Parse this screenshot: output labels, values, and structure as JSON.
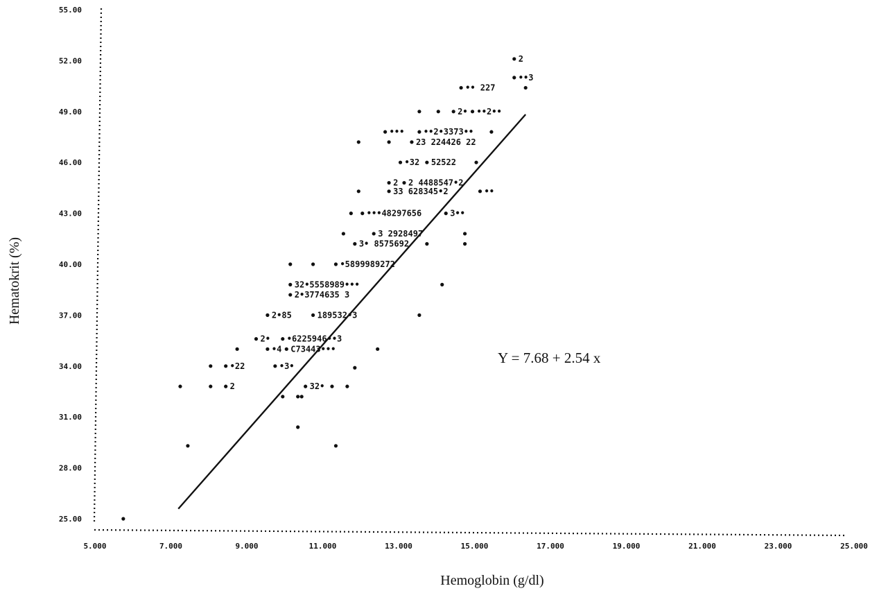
{
  "chart_data": {
    "type": "scatter",
    "xlabel": "Hemoglobin (g/dl)",
    "ylabel": "Hematokrit  (%)",
    "xlim": [
      5.0,
      25.0
    ],
    "ylim": [
      25.0,
      55.0
    ],
    "x_ticks": [
      "5.000",
      "7.000",
      "9.000",
      "11.000",
      "13.000",
      "15.000",
      "17.000",
      "19.000",
      "21.000",
      "23.000",
      "25.000"
    ],
    "y_ticks": [
      "25.00",
      "28.00",
      "31.00",
      "34.00",
      "37.00",
      "40.00",
      "43.00",
      "46.00",
      "49.00",
      "52.00",
      "55.00"
    ],
    "regression": {
      "label": "Y = 7.68 + 2.54 x",
      "intercept": 7.68,
      "slope": 2.54,
      "x_range": [
        7.05,
        16.2
      ]
    },
    "points": [
      {
        "x": 5.6,
        "y": 25.0
      },
      {
        "x": 7.3,
        "y": 29.3
      },
      {
        "x": 10.2,
        "y": 30.4
      },
      {
        "x": 11.2,
        "y": 29.3
      },
      {
        "x": 7.1,
        "y": 32.8
      },
      {
        "x": 7.9,
        "y": 32.8
      },
      {
        "x": 8.3,
        "y": 32.8,
        "label": "2"
      },
      {
        "x": 9.8,
        "y": 32.2
      },
      {
        "x": 10.2,
        "y": 32.2
      },
      {
        "x": 10.3,
        "y": 32.2
      },
      {
        "x": 10.4,
        "y": 32.8,
        "label": "32•"
      },
      {
        "x": 11.1,
        "y": 32.8
      },
      {
        "x": 11.5,
        "y": 32.8
      },
      {
        "x": 7.9,
        "y": 34.0
      },
      {
        "x": 8.3,
        "y": 34.0,
        "label": "•22"
      },
      {
        "x": 9.6,
        "y": 34.0,
        "label": "•3•"
      },
      {
        "x": 11.7,
        "y": 33.9
      },
      {
        "x": 8.6,
        "y": 35.0
      },
      {
        "x": 9.4,
        "y": 35.0,
        "label": "•4"
      },
      {
        "x": 9.9,
        "y": 35.0,
        "label": "C73443•••"
      },
      {
        "x": 12.3,
        "y": 35.0
      },
      {
        "x": 9.1,
        "y": 35.6,
        "label": "2•"
      },
      {
        "x": 9.8,
        "y": 35.6,
        "label": "•6225946••3"
      },
      {
        "x": 9.4,
        "y": 37.0,
        "label": "2•85"
      },
      {
        "x": 10.6,
        "y": 37.0,
        "label": "189532•3"
      },
      {
        "x": 13.4,
        "y": 37.0
      },
      {
        "x": 10.0,
        "y": 38.2,
        "label": "2•3774635 3"
      },
      {
        "x": 10.0,
        "y": 38.8,
        "label": "32•5558989•••"
      },
      {
        "x": 14.0,
        "y": 38.8
      },
      {
        "x": 10.0,
        "y": 40.0
      },
      {
        "x": 10.6,
        "y": 40.0
      },
      {
        "x": 11.2,
        "y": 40.0,
        "label": "•5899989272"
      },
      {
        "x": 11.7,
        "y": 41.2,
        "label": "3• 8575692"
      },
      {
        "x": 13.6,
        "y": 41.2
      },
      {
        "x": 14.6,
        "y": 41.2
      },
      {
        "x": 11.4,
        "y": 41.8
      },
      {
        "x": 12.2,
        "y": 41.8,
        "label": "3 2928497"
      },
      {
        "x": 14.6,
        "y": 41.8
      },
      {
        "x": 11.6,
        "y": 43.0
      },
      {
        "x": 11.9,
        "y": 43.0,
        "label": "•••48297656"
      },
      {
        "x": 14.1,
        "y": 43.0,
        "label": "3••"
      },
      {
        "x": 11.8,
        "y": 44.3
      },
      {
        "x": 12.6,
        "y": 44.3,
        "label": "33 628345•2"
      },
      {
        "x": 15.0,
        "y": 44.3,
        "label": "••"
      },
      {
        "x": 12.6,
        "y": 44.8,
        "label": "2"
      },
      {
        "x": 13.0,
        "y": 44.8,
        "label": "2 4488547•2"
      },
      {
        "x": 12.9,
        "y": 46.0,
        "label": "•32"
      },
      {
        "x": 13.6,
        "y": 46.0,
        "label": "52522"
      },
      {
        "x": 14.9,
        "y": 46.0
      },
      {
        "x": 11.8,
        "y": 47.2
      },
      {
        "x": 12.6,
        "y": 47.2
      },
      {
        "x": 13.2,
        "y": 47.2,
        "label": "23 224426 22"
      },
      {
        "x": 12.5,
        "y": 47.8,
        "label": "•••"
      },
      {
        "x": 13.4,
        "y": 47.8,
        "label": "••2•3373••"
      },
      {
        "x": 15.3,
        "y": 47.8
      },
      {
        "x": 13.4,
        "y": 49.0
      },
      {
        "x": 13.9,
        "y": 49.0
      },
      {
        "x": 14.3,
        "y": 49.0,
        "label": "2•"
      },
      {
        "x": 14.8,
        "y": 49.0,
        "label": "••2••"
      },
      {
        "x": 14.5,
        "y": 50.4,
        "label": "•• 227"
      },
      {
        "x": 16.2,
        "y": 50.4
      },
      {
        "x": 15.9,
        "y": 51.0,
        "label": "••3"
      },
      {
        "x": 15.9,
        "y": 52.1,
        "label": "2"
      }
    ]
  }
}
